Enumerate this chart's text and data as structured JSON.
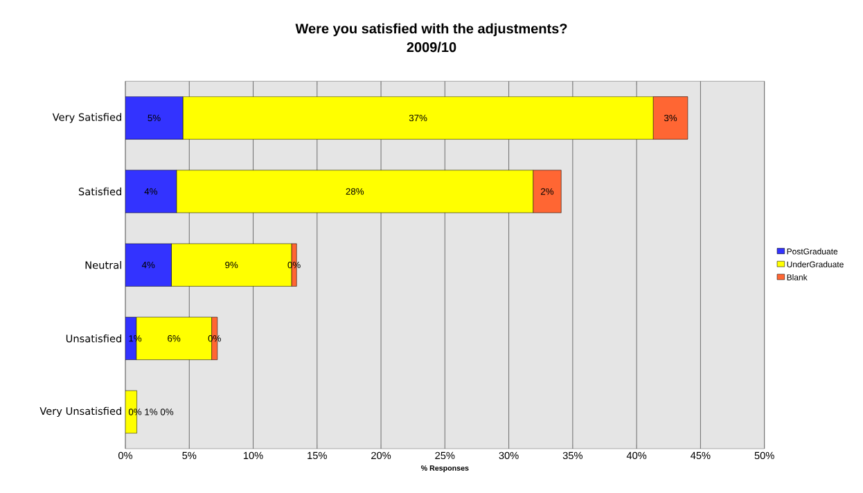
{
  "chart_data": {
    "type": "bar",
    "orientation": "horizontal",
    "stacked": true,
    "title": "Were you satisfied with the adjustments?",
    "subtitle": "2009/10",
    "xlabel": "% Responses",
    "categories": [
      "Very Satisfied",
      "Satisfied",
      "Neutral",
      "Unsatisfied",
      "Very Unsatisfied"
    ],
    "series": [
      {
        "name": "PostGraduate",
        "color": "#3333ff",
        "values": [
          4.5,
          4.0,
          3.6,
          0.85,
          0
        ],
        "value_labels": [
          "5%",
          "4%",
          "4%",
          "1%",
          "0%"
        ]
      },
      {
        "name": "UnderGraduate",
        "color": "#ffff00",
        "values": [
          36.8,
          27.9,
          9.4,
          5.9,
          0.9
        ],
        "value_labels": [
          "37%",
          "28%",
          "9%",
          "6%",
          "1%"
        ]
      },
      {
        "name": "Blank",
        "color": "#ff6633",
        "values": [
          2.7,
          2.2,
          0.4,
          0.45,
          0
        ],
        "value_labels": [
          "3%",
          "2%",
          "0%",
          "0%",
          "0%"
        ]
      }
    ],
    "xlim": [
      0,
      50
    ],
    "xticks": [
      {
        "value": 0,
        "label": "0%"
      },
      {
        "value": 5,
        "label": "5%"
      },
      {
        "value": 10,
        "label": "10%"
      },
      {
        "value": 15,
        "label": "15%"
      },
      {
        "value": 20,
        "label": "20%"
      },
      {
        "value": 25,
        "label": "25%"
      },
      {
        "value": 30,
        "label": "30%"
      },
      {
        "value": 35,
        "label": "35%"
      },
      {
        "value": 40,
        "label": "40%"
      },
      {
        "value": 45,
        "label": "45%"
      },
      {
        "value": 50,
        "label": "50%"
      }
    ],
    "grid": "x",
    "legend": "right"
  }
}
